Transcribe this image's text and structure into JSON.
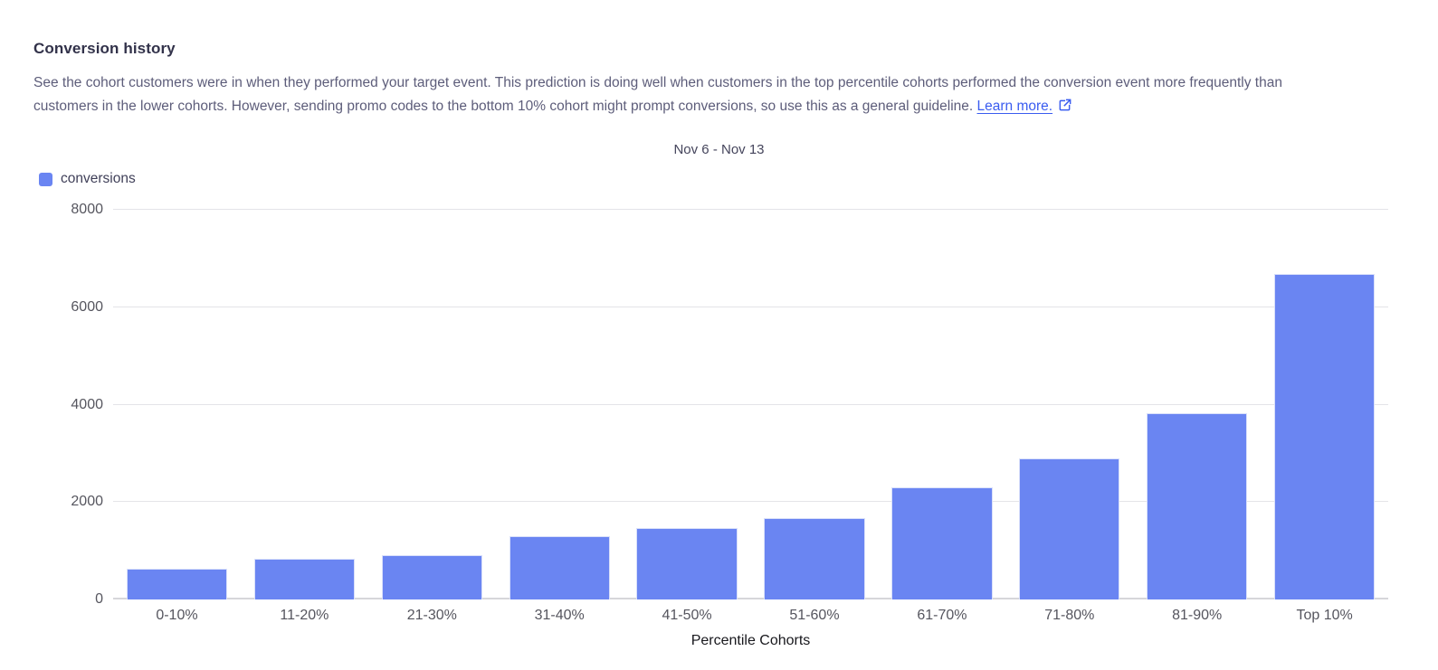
{
  "page": {
    "title": "Conversion history",
    "description_line1": "See the cohort customers were in when they performed your target event. This prediction is doing well when customers in the top percentile cohorts performed the conversion event more frequently than",
    "description_line2": "customers in the lower cohorts. However, sending promo codes to the bottom 10% cohort might prompt conversions, so use this as a general guideline.",
    "learn_more_label": "Learn more."
  },
  "colors": {
    "bar": "#6a85f2",
    "link": "#3a5cf0",
    "gridline": "#e4e4e8"
  },
  "chart_data": {
    "type": "bar",
    "title": "Nov 6 - Nov 13",
    "legend": [
      {
        "label": "conversions",
        "color": "#6a85f2"
      }
    ],
    "legend_position": "top-left",
    "categories": [
      "0-10%",
      "11-20%",
      "21-30%",
      "31-40%",
      "41-50%",
      "51-60%",
      "61-70%",
      "71-80%",
      "81-90%",
      "Top 10%"
    ],
    "series": [
      {
        "name": "conversions",
        "values": [
          630,
          830,
          910,
          1300,
          1460,
          1670,
          2300,
          2890,
          3830,
          6680
        ]
      }
    ],
    "xlabel": "Percentile Cohorts",
    "ylabel": "",
    "ylim": [
      0,
      8000
    ],
    "yticks": [
      0,
      2000,
      4000,
      6000,
      8000
    ],
    "grid": true
  }
}
